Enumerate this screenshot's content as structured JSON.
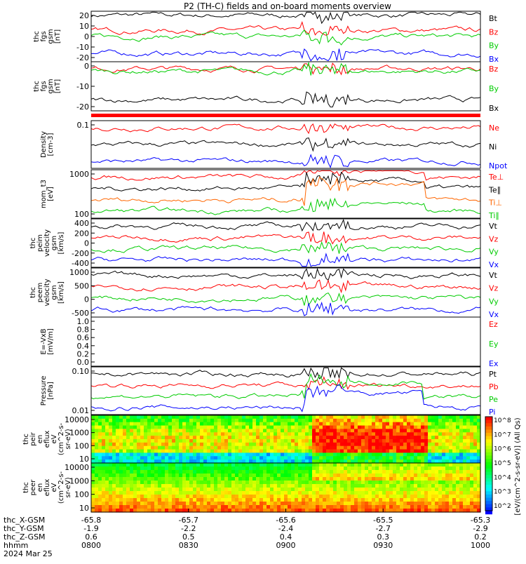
{
  "title": "P2 (TH-C) fields and on-board moments overview",
  "colors": {
    "black": "#000000",
    "red": "#ff0000",
    "green": "#00cc00",
    "blue": "#0000ff",
    "orange": "#ff6600",
    "yellow": "#ffff00",
    "cyan": "#00ccff"
  },
  "chart_data": [
    {
      "type": "line",
      "id": "fgs_gsm",
      "ylabel": [
        "thc",
        "fgs",
        "gsm",
        "[nT]"
      ],
      "yticks": [
        "20",
        "10",
        "0",
        "-10",
        "-20"
      ],
      "ylim": [
        -25,
        25
      ],
      "series": [
        {
          "name": "Bt",
          "color": "black",
          "level": 21
        },
        {
          "name": "Bz",
          "color": "red",
          "level": 6
        },
        {
          "name": "By",
          "color": "green",
          "level": 0
        },
        {
          "name": "Bx",
          "color": "blue",
          "level": -17
        }
      ]
    },
    {
      "type": "line",
      "id": "fgs_gsm2",
      "ylabel": [
        "thc",
        "fgs",
        "gsm",
        "[nT]"
      ],
      "yticks": [
        "0",
        "-10",
        "-20"
      ],
      "ylim": [
        -28,
        8
      ],
      "series": [
        {
          "name": "Bz",
          "color": "red",
          "level": 3
        },
        {
          "name": "By",
          "color": "green",
          "level": 1
        },
        {
          "name": "Bx",
          "color": "black",
          "level": -20
        }
      ]
    },
    {
      "type": "line",
      "id": "density",
      "ylabel": [
        "Density",
        "[cm-3]"
      ],
      "yticks": [
        "0.1"
      ],
      "log": true,
      "series": [
        {
          "name": "Ne",
          "color": "red"
        },
        {
          "name": "Ni",
          "color": "black"
        },
        {
          "name": "Npot",
          "color": "blue"
        }
      ]
    },
    {
      "type": "line",
      "id": "temp",
      "ylabel": [
        "mom_t3",
        "[eV]"
      ],
      "yticks": [
        "1000",
        "100"
      ],
      "log": true,
      "series": [
        {
          "name": "Te⊥",
          "color": "red"
        },
        {
          "name": "Te∥",
          "color": "black"
        },
        {
          "name": "Ti⊥",
          "color": "orange"
        },
        {
          "name": "Ti∥",
          "color": "green"
        }
      ]
    },
    {
      "type": "line",
      "id": "peim_vel",
      "ylabel": [
        "thc",
        "peim",
        "velocity",
        "gsm",
        "[km/s]"
      ],
      "yticks": [
        "400",
        "200",
        "0",
        "-200",
        "-400"
      ],
      "ylim": [
        -450,
        450
      ],
      "series": [
        {
          "name": "Vt",
          "color": "black"
        },
        {
          "name": "Vz",
          "color": "red"
        },
        {
          "name": "Vy",
          "color": "green"
        },
        {
          "name": "Vx",
          "color": "blue"
        }
      ]
    },
    {
      "type": "line",
      "id": "peem_vel",
      "ylabel": [
        "thc",
        "peem",
        "velocity",
        "gsm",
        "[km/s]"
      ],
      "yticks": [
        "1000",
        "500",
        "0",
        "-500"
      ],
      "ylim": [
        -900,
        1200
      ],
      "series": [
        {
          "name": "Vt",
          "color": "black"
        },
        {
          "name": "Vz",
          "color": "red"
        },
        {
          "name": "Vy",
          "color": "green"
        },
        {
          "name": "Vx",
          "color": "blue"
        }
      ]
    },
    {
      "type": "line",
      "id": "efield",
      "ylabel": [
        "E=-VxB",
        "[mV/m]"
      ],
      "yticks": [
        "1.0",
        "0.8",
        "0.6",
        "0.4",
        "0.2",
        "0.0"
      ],
      "ylim": [
        0,
        1
      ],
      "series": [
        {
          "name": "Ez",
          "color": "red"
        },
        {
          "name": "Ey",
          "color": "green"
        },
        {
          "name": "Ex",
          "color": "blue"
        }
      ]
    },
    {
      "type": "line",
      "id": "pressure",
      "ylabel": [
        "Pressure",
        "[nPa]"
      ],
      "yticks": [
        "0.10",
        "0.01"
      ],
      "log": true,
      "series": [
        {
          "name": "Pt",
          "color": "black"
        },
        {
          "name": "Pb",
          "color": "red"
        },
        {
          "name": "Pe",
          "color": "green"
        },
        {
          "name": "Pi",
          "color": "blue"
        }
      ]
    },
    {
      "type": "heatmap",
      "id": "peir",
      "ylabel": [
        "thc",
        "peir",
        "en",
        "eflux",
        "eV",
        "(cm^2-s-",
        "sr-eV)"
      ],
      "yticks": [
        "10000",
        "1000",
        "100",
        "10"
      ]
    },
    {
      "type": "heatmap",
      "id": "peer",
      "ylabel": [
        "thc",
        "peer",
        "en",
        "eflux",
        "eV",
        "(cm^2-s-",
        "sr-eV)"
      ],
      "yticks": [
        "10000",
        "1000",
        "100",
        "10"
      ]
    }
  ],
  "colorbar": {
    "ticks": [
      "10^8",
      "10^7",
      "10^6",
      "10^5",
      "10^4",
      "10^3",
      "10^2"
    ],
    "label": "[eV/(cm^2-s-sr-eV)] (All Qs)"
  },
  "xaxis": {
    "rows": [
      {
        "label": "thc_X-GSM",
        "values": [
          "-65.8",
          "-65.7",
          "-65.6",
          "-65.5",
          "-65.3"
        ]
      },
      {
        "label": "thc_Y-GSM",
        "values": [
          "-1.9",
          "-2.2",
          "-2.4",
          "-2.7",
          "-2.9"
        ]
      },
      {
        "label": "thc_Z-GSM",
        "values": [
          "0.6",
          "0.5",
          "0.4",
          "0.3",
          "0.2"
        ]
      },
      {
        "label": "hhmm",
        "values": [
          "0800",
          "0830",
          "0900",
          "0930",
          "1000"
        ]
      }
    ],
    "date": "2024 Mar 25"
  }
}
